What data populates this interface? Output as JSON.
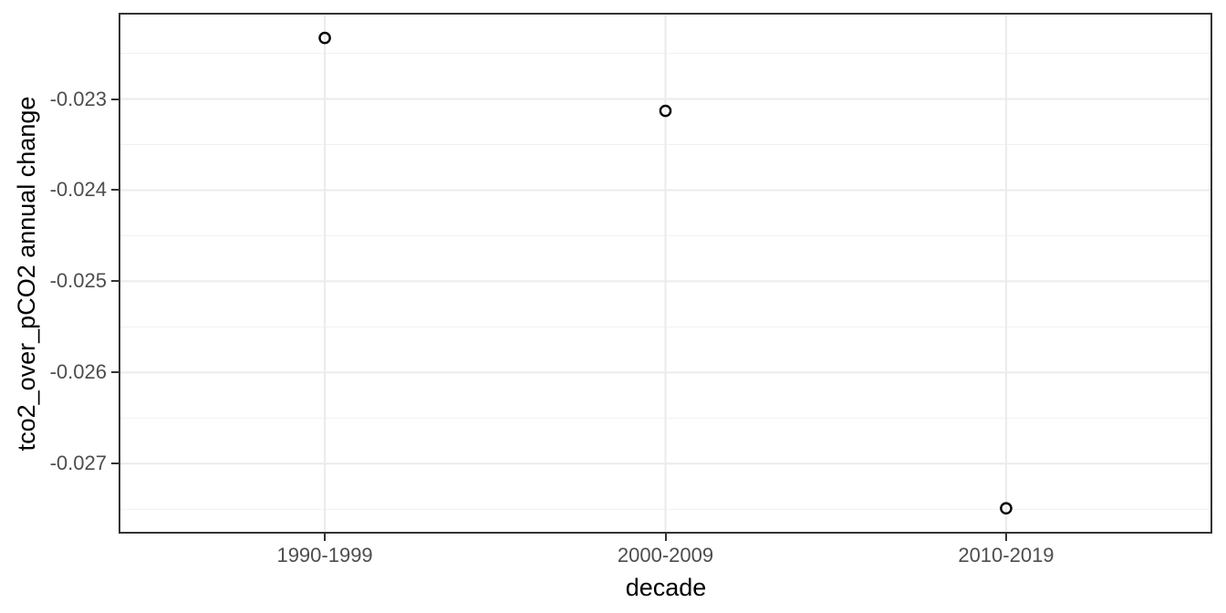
{
  "chart_data": {
    "type": "scatter",
    "title": "",
    "xlabel": "decade",
    "ylabel": "tco2_over_pCO2 annual change",
    "categories": [
      "1990-1999",
      "2000-2009",
      "2010-2019"
    ],
    "values": [
      -0.02233,
      -0.02313,
      -0.02749
    ],
    "y_ticks": [
      -0.023,
      -0.024,
      -0.025,
      -0.026,
      -0.027
    ],
    "y_tick_labels": [
      "-0.023",
      "-0.024",
      "-0.025",
      "-0.026",
      "-0.027"
    ],
    "ylim": [
      -0.027748,
      -0.022074
    ],
    "grid": "major and minor horizontal, major vertical at each category",
    "legend": false,
    "point_style": "open circle",
    "colors": {
      "background": "#FFFFFF",
      "panel_background": "#FFFFFF",
      "panel_border": "#333333",
      "grid_major": "#EBEBEB",
      "grid_minor": "#F1F1F1",
      "axis_text": "#4D4D4D",
      "axis_title": "#000000",
      "point_stroke": "#000000",
      "tick_mark": "#333333"
    }
  }
}
